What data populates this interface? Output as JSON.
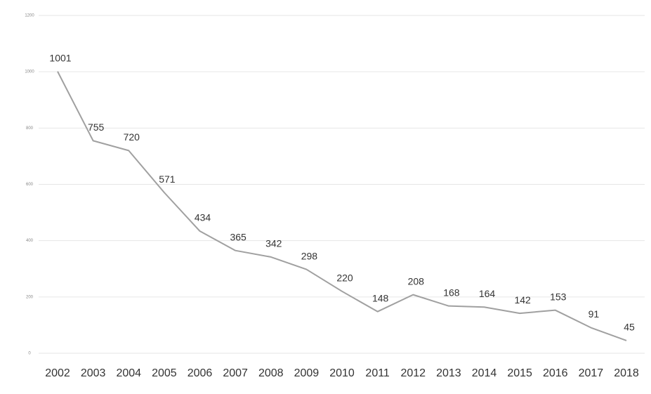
{
  "chart_data": {
    "type": "line",
    "categories": [
      "2002",
      "2003",
      "2004",
      "2005",
      "2006",
      "2007",
      "2008",
      "2009",
      "2010",
      "2011",
      "2012",
      "2013",
      "2014",
      "2015",
      "2016",
      "2017",
      "2018"
    ],
    "values": [
      1001,
      755,
      720,
      571,
      434,
      365,
      342,
      298,
      220,
      148,
      208,
      168,
      164,
      142,
      153,
      91,
      45
    ],
    "color": "#a0a0a0",
    "ylim": [
      0,
      1200
    ],
    "yticks": [
      0,
      200,
      400,
      600,
      800,
      1000,
      1200
    ],
    "grid": true
  }
}
